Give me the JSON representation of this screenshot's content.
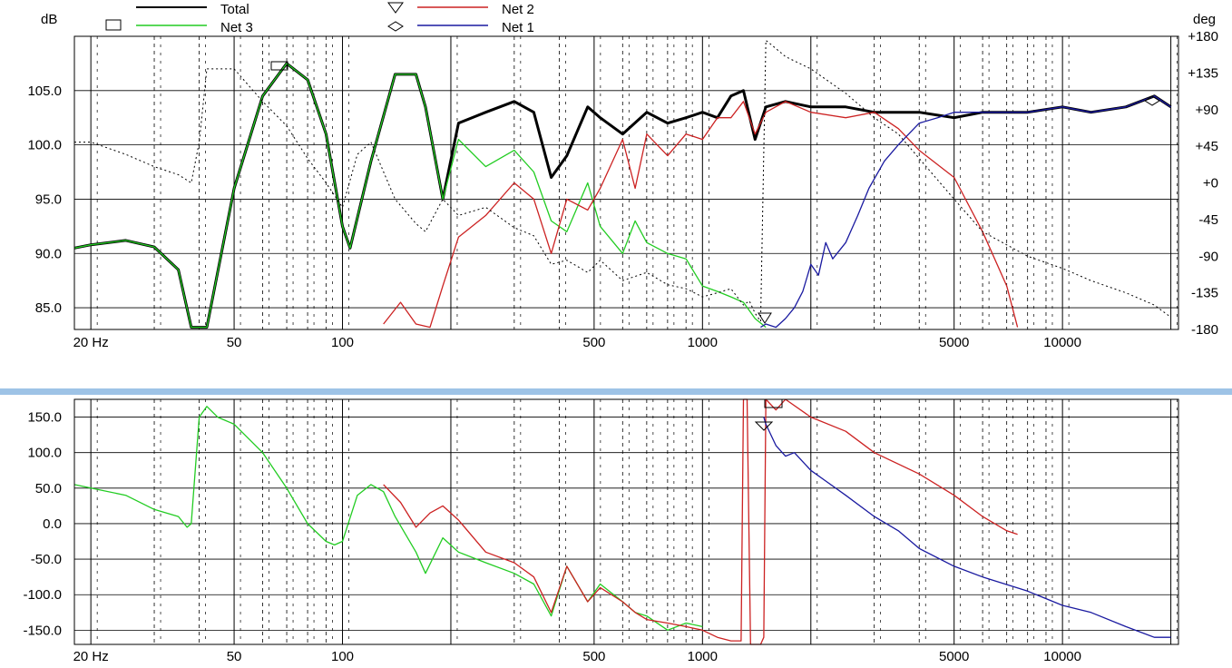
{
  "colors": {
    "total": "#000000",
    "net3": "#22cc22",
    "net2": "#cc2222",
    "net1": "#1a1aa0",
    "grid": "#000000",
    "divider": "#9ec3e6"
  },
  "chart_data": [
    {
      "type": "line",
      "title": "",
      "ylabel": "dB",
      "y2label": "deg",
      "xscale": "log",
      "xlim": [
        18,
        21000
      ],
      "ylim": [
        83,
        110
      ],
      "y2lim": [
        -180,
        180
      ],
      "xticks": [
        20,
        50,
        100,
        500,
        1000,
        5000,
        10000
      ],
      "xtick_labels": [
        "20 Hz",
        "50",
        "100",
        "500",
        "1000",
        "5000",
        "10000"
      ],
      "yticks": [
        85,
        90,
        95,
        100,
        105
      ],
      "ytick_labels": [
        "85.0",
        "90.0",
        "95.0",
        "100.0",
        "105.0"
      ],
      "y2ticks": [
        -180,
        -135,
        -90,
        -45,
        0,
        45,
        90,
        135,
        180
      ],
      "y2tick_labels": [
        "-180",
        "-135",
        "-90",
        "-45",
        "+0",
        "+45",
        "+90",
        "+135",
        "+180"
      ],
      "grid": true,
      "legend": {
        "position": "top",
        "entries": [
          {
            "label": "Total",
            "marker": "square",
            "color": "#000000"
          },
          {
            "label": "Net 3",
            "marker": "square",
            "color": "#22cc22"
          },
          {
            "label": "Net 2",
            "marker": "triangle-down",
            "color": "#cc2222"
          },
          {
            "label": "Net 1",
            "marker": "diamond",
            "color": "#1a1aa0"
          }
        ]
      },
      "series": [
        {
          "name": "Total",
          "axis": "left",
          "x": [
            18,
            20,
            25,
            30,
            35,
            38,
            42,
            50,
            60,
            70,
            80,
            90,
            100,
            105,
            120,
            140,
            160,
            170,
            190,
            210,
            250,
            300,
            340,
            380,
            420,
            480,
            520,
            600,
            700,
            800,
            900,
            1000,
            1100,
            1200,
            1300,
            1400,
            1500,
            1700,
            2000,
            2500,
            3000,
            4000,
            5000,
            6000,
            7000,
            8000,
            10000,
            12000,
            15000,
            18000,
            20000
          ],
          "y": [
            90.5,
            90.8,
            91.2,
            90.6,
            88.5,
            83.2,
            83.2,
            96.0,
            104.5,
            107.5,
            106.0,
            101.0,
            92.5,
            90.5,
            98.5,
            106.5,
            106.5,
            103.5,
            95.0,
            102.0,
            103.0,
            104.0,
            103.0,
            97.0,
            99.0,
            103.5,
            102.5,
            101.0,
            103.0,
            102.0,
            102.5,
            103.0,
            102.5,
            104.5,
            105.0,
            100.5,
            103.5,
            104.0,
            103.5,
            103.5,
            103.0,
            103.0,
            102.5,
            103.0,
            103.0,
            103.0,
            103.5,
            103.0,
            103.5,
            104.5,
            103.5
          ]
        },
        {
          "name": "Net 3",
          "axis": "left",
          "x": [
            18,
            20,
            25,
            30,
            35,
            38,
            42,
            50,
            60,
            70,
            80,
            90,
            100,
            105,
            120,
            140,
            160,
            170,
            190,
            210,
            250,
            300,
            340,
            380,
            420,
            480,
            520,
            600,
            650,
            700,
            800,
            900,
            1000,
            1100,
            1200,
            1300,
            1400,
            1500
          ],
          "y": [
            90.5,
            90.8,
            91.2,
            90.6,
            88.5,
            83.2,
            83.2,
            96.0,
            104.5,
            107.5,
            106.0,
            101.0,
            92.5,
            90.5,
            98.5,
            106.5,
            106.5,
            103.5,
            95.0,
            100.5,
            98.0,
            99.5,
            97.5,
            93.0,
            92.0,
            96.5,
            92.5,
            90.0,
            93.0,
            91.0,
            90.0,
            89.5,
            87.0,
            86.5,
            86.0,
            85.5,
            84.0,
            83.2
          ]
        },
        {
          "name": "Net 2",
          "axis": "left",
          "x": [
            130,
            145,
            160,
            175,
            190,
            210,
            250,
            300,
            340,
            380,
            420,
            480,
            520,
            600,
            650,
            700,
            800,
            900,
            1000,
            1100,
            1200,
            1300,
            1400,
            1500,
            1700,
            2000,
            2500,
            3000,
            3500,
            4000,
            5000,
            6000,
            7000,
            7500
          ],
          "y": [
            83.5,
            85.5,
            83.5,
            83.2,
            87.0,
            91.5,
            93.5,
            96.5,
            95.0,
            90.0,
            95.0,
            94.0,
            96.0,
            100.5,
            96.0,
            101.0,
            99.0,
            101.0,
            100.5,
            102.5,
            102.5,
            104.0,
            101.0,
            103.0,
            104.0,
            103.0,
            102.5,
            103.0,
            101.5,
            99.5,
            97.0,
            92.0,
            87.0,
            83.2
          ]
        },
        {
          "name": "Net 1",
          "axis": "left",
          "x": [
            1450,
            1500,
            1600,
            1700,
            1800,
            1900,
            2000,
            2100,
            2200,
            2300,
            2500,
            2700,
            2900,
            3200,
            3500,
            4000,
            4500,
            5000,
            6000,
            7000,
            8000,
            10000,
            12000,
            15000,
            18000,
            20000
          ],
          "y": [
            83.2,
            83.5,
            83.2,
            84.0,
            85.0,
            86.5,
            89.0,
            88.0,
            91.0,
            89.5,
            91.0,
            93.5,
            96.0,
            98.5,
            100.0,
            102.0,
            102.5,
            103.0,
            103.0,
            103.0,
            103.0,
            103.5,
            103.0,
            103.5,
            104.5,
            103.5
          ]
        },
        {
          "name": "Total phase",
          "axis": "right",
          "style": "dotted",
          "x": [
            18,
            20,
            25,
            30,
            35,
            38,
            40,
            42,
            50,
            60,
            70,
            80,
            90,
            100,
            110,
            120,
            140,
            160,
            170,
            190,
            210,
            250,
            300,
            340,
            380,
            420,
            480,
            520,
            600,
            700,
            800,
            900,
            1000,
            1100,
            1200,
            1300,
            1350,
            1400,
            1450,
            1500,
            1550,
            1600,
            1700,
            2000,
            2500,
            3000,
            3500,
            4000,
            5000,
            6000,
            8000,
            10000,
            12000,
            15000,
            18000,
            20000
          ],
          "y": [
            50,
            50,
            35,
            20,
            10,
            0,
            50,
            140,
            140,
            100,
            70,
            30,
            0,
            -30,
            35,
            50,
            -20,
            -50,
            -60,
            -20,
            -40,
            -30,
            -55,
            -65,
            -100,
            -95,
            -110,
            -95,
            -120,
            -110,
            -125,
            -130,
            -140,
            -135,
            -130,
            -150,
            -145,
            -160,
            -170,
            175,
            170,
            165,
            155,
            140,
            110,
            80,
            60,
            30,
            -20,
            -60,
            -90,
            -105,
            -120,
            -135,
            -150,
            -165
          ]
        }
      ]
    },
    {
      "type": "line",
      "title": "",
      "xscale": "log",
      "xlim": [
        18,
        21000
      ],
      "ylim": [
        -170,
        175
      ],
      "xticks": [
        20,
        50,
        100,
        500,
        1000,
        5000,
        10000
      ],
      "xtick_labels": [
        "20 Hz",
        "50",
        "100",
        "500",
        "1000",
        "5000",
        "10000"
      ],
      "yticks": [
        -150,
        -100,
        -50,
        0,
        50,
        100,
        150
      ],
      "ytick_labels": [
        "-150.0",
        "-100.0",
        "-50.0",
        "0.0",
        "50.0",
        "100.0",
        "150.0"
      ],
      "grid": true,
      "series": [
        {
          "name": "Net 3",
          "x": [
            18,
            20,
            25,
            30,
            35,
            37,
            38,
            40,
            42,
            45,
            50,
            60,
            70,
            80,
            90,
            95,
            100,
            110,
            120,
            130,
            140,
            160,
            170,
            190,
            210,
            250,
            300,
            340,
            380,
            420,
            480,
            520,
            600,
            650,
            700,
            800,
            900,
            1000
          ],
          "y": [
            55,
            50,
            40,
            20,
            10,
            -5,
            0,
            150,
            165,
            150,
            140,
            100,
            50,
            0,
            -25,
            -30,
            -25,
            40,
            55,
            45,
            10,
            -40,
            -70,
            -20,
            -40,
            -55,
            -70,
            -85,
            -130,
            -60,
            -110,
            -85,
            -110,
            -125,
            -130,
            -150,
            -140,
            -145
          ]
        },
        {
          "name": "Net 2",
          "x": [
            130,
            145,
            160,
            175,
            190,
            210,
            250,
            300,
            340,
            380,
            420,
            480,
            520,
            600,
            650,
            700,
            800,
            900,
            1000,
            1100,
            1200,
            1280,
            1300,
            1330,
            1360,
            1400,
            1450,
            1480,
            1500,
            1600,
            1700,
            2000,
            2500,
            3000,
            4000,
            5000,
            6000,
            7000,
            7500
          ],
          "y": [
            55,
            30,
            -5,
            15,
            25,
            5,
            -40,
            -55,
            -75,
            -125,
            -60,
            -110,
            -90,
            -110,
            -125,
            -135,
            -140,
            -145,
            -150,
            -160,
            -165,
            -165,
            175,
            175,
            -170,
            -170,
            -170,
            -160,
            175,
            160,
            175,
            150,
            130,
            100,
            70,
            40,
            10,
            -10,
            -15
          ]
        },
        {
          "name": "Net 1",
          "x": [
            1480,
            1500,
            1600,
            1700,
            1800,
            2000,
            2200,
            2500,
            3000,
            3500,
            4000,
            5000,
            6000,
            8000,
            10000,
            12000,
            15000,
            18000,
            20000
          ],
          "y": [
            150,
            140,
            110,
            95,
            100,
            75,
            60,
            40,
            10,
            -10,
            -35,
            -60,
            -75,
            -95,
            -115,
            -125,
            -145,
            -160,
            -160
          ]
        }
      ]
    }
  ]
}
